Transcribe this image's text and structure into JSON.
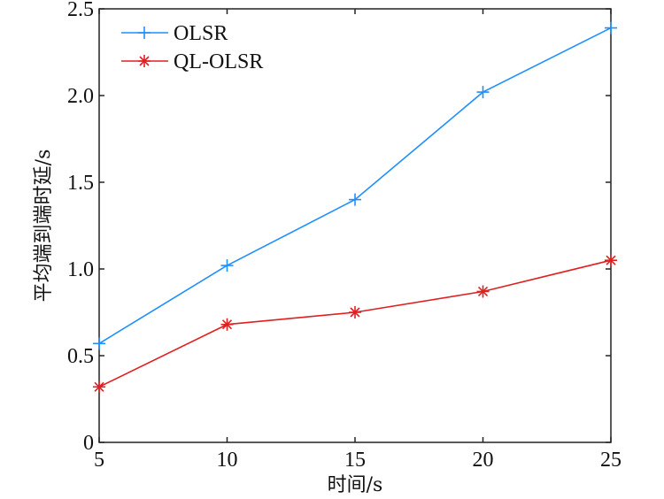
{
  "chart_data": {
    "type": "line",
    "title": "",
    "xlabel": "时间/s",
    "ylabel": "平均端到端时延/s",
    "x": [
      5,
      10,
      15,
      20,
      25
    ],
    "xlim": [
      5,
      25
    ],
    "ylim": [
      0,
      2.5
    ],
    "xticks": [
      5,
      10,
      15,
      20,
      25
    ],
    "xtick_labels": [
      "5",
      "10",
      "15",
      "20",
      "25"
    ],
    "yticks": [
      0,
      0.5,
      1.0,
      1.5,
      2.0,
      2.5
    ],
    "ytick_labels": [
      "0",
      "0.5",
      "1.0",
      "1.5",
      "2.0",
      "2.5"
    ],
    "grid": false,
    "legend_position": "top-left",
    "series": [
      {
        "name": "OLSR",
        "color": "#1f8fff",
        "marker": "plus",
        "values": [
          0.57,
          1.02,
          1.4,
          2.02,
          2.39
        ]
      },
      {
        "name": "QL-OLSR",
        "color": "#e02020",
        "marker": "asterisk",
        "values": [
          0.32,
          0.68,
          0.75,
          0.87,
          1.05
        ]
      }
    ]
  }
}
